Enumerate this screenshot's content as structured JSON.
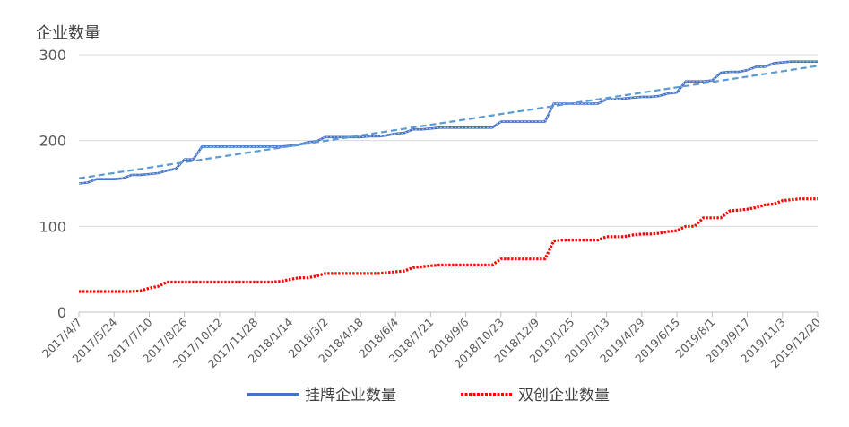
{
  "chart_data": {
    "type": "line",
    "title": "",
    "ylabel": "企业数量",
    "xlabel": "",
    "ylim": [
      0,
      300
    ],
    "y_ticks": [
      0,
      100,
      200,
      300
    ],
    "x_tick_labels": [
      "2017/4/7",
      "2017/5/24",
      "2017/7/10",
      "2017/8/26",
      "2017/10/12",
      "2017/11/28",
      "2018/1/14",
      "2018/3/2",
      "2018/4/18",
      "2018/6/4",
      "2018/7/21",
      "2018/9/6",
      "2018/10/23",
      "2018/12/9",
      "2019/1/25",
      "2019/3/13",
      "2019/4/29",
      "2019/6/15",
      "2019/8/1",
      "2019/9/17",
      "2019/11/3",
      "2019/12/20"
    ],
    "legend_position": "bottom",
    "grid": true,
    "series": [
      {
        "name": "挂牌企业数量",
        "color": "#4472c4",
        "style": "solid",
        "values": [
          150,
          151,
          155,
          155,
          155,
          156,
          160,
          160,
          161,
          162,
          165,
          167,
          178,
          178,
          193,
          193,
          193,
          193,
          193,
          193,
          193,
          193,
          193,
          193,
          194,
          195,
          198,
          199,
          204,
          204,
          204,
          204,
          204,
          205,
          205,
          206,
          208,
          209,
          213,
          213,
          214,
          215,
          215,
          215,
          215,
          215,
          215,
          215,
          222,
          222,
          222,
          222,
          222,
          222,
          243,
          243,
          243,
          243,
          243,
          243,
          248,
          248,
          249,
          250,
          251,
          251,
          252,
          255,
          256,
          269,
          269,
          269,
          270,
          279,
          280,
          280,
          282,
          286,
          286,
          290,
          291,
          292,
          292,
          292,
          292
        ]
      },
      {
        "name": "双创企业数量",
        "color": "#ff0000",
        "style": "dotted",
        "values": [
          24,
          24,
          24,
          24,
          24,
          24,
          24,
          25,
          28,
          30,
          35,
          35,
          35,
          35,
          35,
          35,
          35,
          35,
          35,
          35,
          35,
          35,
          35,
          36,
          38,
          40,
          40,
          42,
          45,
          45,
          45,
          45,
          45,
          45,
          45,
          46,
          47,
          48,
          52,
          53,
          54,
          55,
          55,
          55,
          55,
          55,
          55,
          55,
          62,
          62,
          62,
          62,
          62,
          62,
          83,
          84,
          84,
          84,
          84,
          84,
          88,
          88,
          88,
          90,
          91,
          91,
          92,
          94,
          95,
          100,
          100,
          110,
          110,
          110,
          118,
          119,
          120,
          122,
          125,
          126,
          130,
          131,
          132,
          132,
          132
        ]
      }
    ],
    "trendline": {
      "color": "#5b9bd5",
      "style": "dashed",
      "start": 156,
      "end": 287
    },
    "fill": {
      "type": "drop-lines",
      "color": "#b4c7e7"
    }
  }
}
